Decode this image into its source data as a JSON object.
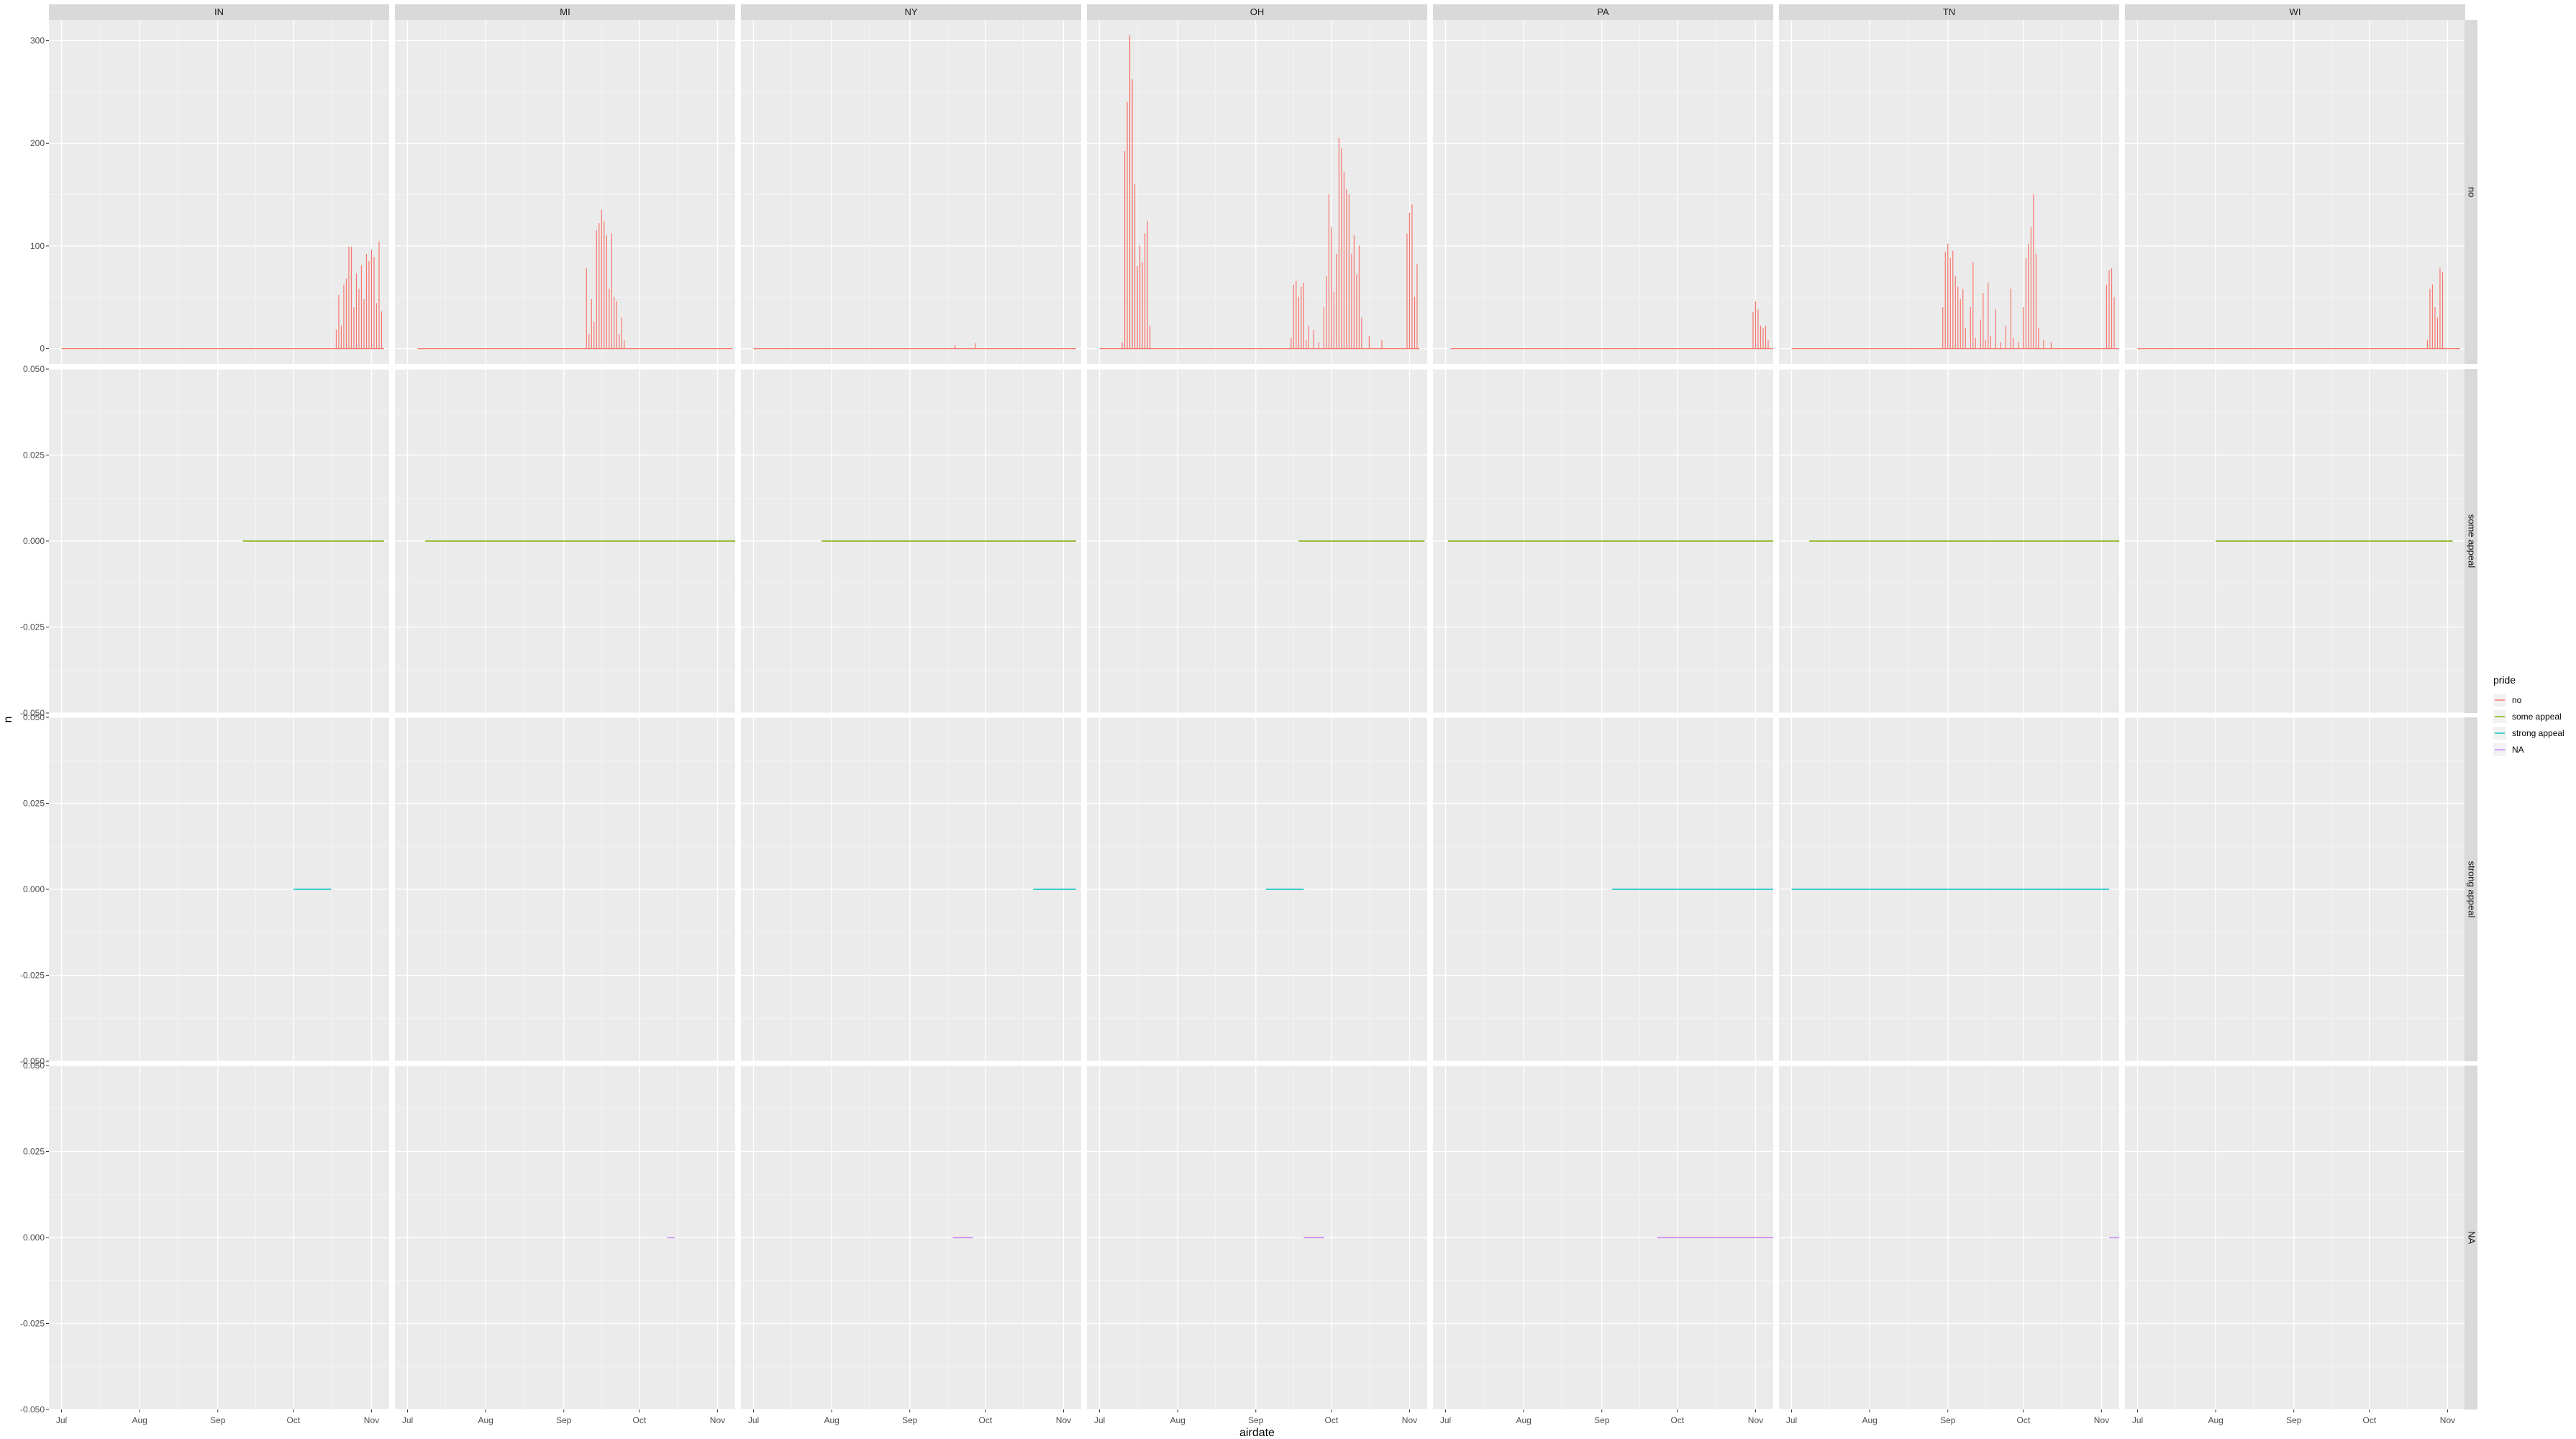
{
  "chart_data": {
    "type": "line",
    "facet_columns": [
      "IN",
      "MI",
      "NY",
      "OH",
      "PA",
      "TN",
      "WI"
    ],
    "facet_rows": [
      "no",
      "some appeal",
      "strong appeal",
      "NA"
    ],
    "xlabel": "airdate",
    "ylabel": "n",
    "x_ticks": [
      "Jul",
      "Aug",
      "Sep",
      "Oct",
      "Nov"
    ],
    "x_range": [
      "2016-06-26",
      "2016-11-08"
    ],
    "y_axes": [
      {
        "row": "no",
        "ylim": [
          -15,
          320
        ],
        "ticks": [
          "0",
          "100",
          "200",
          "300"
        ],
        "tick_values": [
          0,
          100,
          200,
          300
        ]
      },
      {
        "row": "some appeal",
        "ylim": [
          -0.05,
          0.05
        ],
        "ticks": [
          "-0.050",
          "-0.025",
          "0.000",
          "0.025",
          "0.050"
        ],
        "tick_values": [
          -0.05,
          -0.025,
          0,
          0.025,
          0.05
        ]
      },
      {
        "row": "strong appeal",
        "ylim": [
          -0.05,
          0.05
        ],
        "ticks": [
          "-0.050",
          "-0.025",
          "0.000",
          "0.025",
          "0.050"
        ],
        "tick_values": [
          -0.05,
          -0.025,
          0,
          0.025,
          0.05
        ]
      },
      {
        "row": "NA",
        "ylim": [
          -0.05,
          0.05
        ],
        "ticks": [
          "-0.050",
          "-0.025",
          "0.000",
          "0.025",
          "0.050"
        ],
        "tick_values": [
          -0.05,
          -0.025,
          0,
          0.025,
          0.05
        ]
      }
    ],
    "legend": {
      "title": "pride",
      "position": "right",
      "entries": [
        {
          "label": "no",
          "color": "#F8766D"
        },
        {
          "label": "some appeal",
          "color": "#7CAE00"
        },
        {
          "label": "strong appeal",
          "color": "#00BFC4"
        },
        {
          "label": "NA",
          "color": "#C77CFF"
        }
      ]
    },
    "panels": [
      {
        "row": "no",
        "col": "IN",
        "start": "2016-07-01",
        "end": "2016-11-06",
        "peaks": [
          [
            "2016-10-18",
            18
          ],
          [
            "2016-10-19",
            52
          ],
          [
            "2016-10-20",
            22
          ],
          [
            "2016-10-21",
            62
          ],
          [
            "2016-10-22",
            68
          ],
          [
            "2016-10-23",
            99
          ],
          [
            "2016-10-24",
            99
          ],
          [
            "2016-10-25",
            40
          ],
          [
            "2016-10-26",
            73
          ],
          [
            "2016-10-27",
            58
          ],
          [
            "2016-10-28",
            81
          ],
          [
            "2016-10-29",
            48
          ],
          [
            "2016-10-30",
            92
          ],
          [
            "2016-10-31",
            85
          ],
          [
            "2016-11-01",
            96
          ],
          [
            "2016-11-02",
            89
          ],
          [
            "2016-11-03",
            44
          ],
          [
            "2016-11-04",
            104
          ],
          [
            "2016-11-05",
            36
          ]
        ]
      },
      {
        "row": "no",
        "col": "MI",
        "start": "2016-07-05",
        "end": "2016-11-07",
        "peaks": [
          [
            "2016-09-10",
            78
          ],
          [
            "2016-09-11",
            14
          ],
          [
            "2016-09-12",
            48
          ],
          [
            "2016-09-13",
            26
          ],
          [
            "2016-09-14",
            115
          ],
          [
            "2016-09-15",
            122
          ],
          [
            "2016-09-16",
            135
          ],
          [
            "2016-09-17",
            124
          ],
          [
            "2016-09-18",
            110
          ],
          [
            "2016-09-19",
            58
          ],
          [
            "2016-09-20",
            112
          ],
          [
            "2016-09-21",
            50
          ],
          [
            "2016-09-22",
            46
          ],
          [
            "2016-09-23",
            14
          ],
          [
            "2016-09-24",
            30
          ],
          [
            "2016-09-25",
            8
          ]
        ]
      },
      {
        "row": "no",
        "col": "NY",
        "start": "2016-07-01",
        "end": "2016-11-06",
        "peaks": [
          [
            "2016-09-19",
            3
          ],
          [
            "2016-09-27",
            5
          ]
        ]
      },
      {
        "row": "no",
        "col": "OH",
        "start": "2016-07-01",
        "end": "2016-11-05",
        "peaks": [
          [
            "2016-07-10",
            6
          ],
          [
            "2016-07-11",
            192
          ],
          [
            "2016-07-12",
            240
          ],
          [
            "2016-07-13",
            305
          ],
          [
            "2016-07-14",
            262
          ],
          [
            "2016-07-15",
            160
          ],
          [
            "2016-07-16",
            80
          ],
          [
            "2016-07-17",
            100
          ],
          [
            "2016-07-18",
            84
          ],
          [
            "2016-07-19",
            112
          ],
          [
            "2016-07-20",
            124
          ],
          [
            "2016-07-21",
            22
          ],
          [
            "2016-09-15",
            10
          ],
          [
            "2016-09-16",
            62
          ],
          [
            "2016-09-17",
            66
          ],
          [
            "2016-09-18",
            50
          ],
          [
            "2016-09-19",
            60
          ],
          [
            "2016-09-20",
            64
          ],
          [
            "2016-09-21",
            8
          ],
          [
            "2016-09-22",
            22
          ],
          [
            "2016-09-24",
            18
          ],
          [
            "2016-09-26",
            6
          ],
          [
            "2016-09-28",
            40
          ],
          [
            "2016-09-29",
            70
          ],
          [
            "2016-09-30",
            150
          ],
          [
            "2016-10-01",
            118
          ],
          [
            "2016-10-02",
            55
          ],
          [
            "2016-10-03",
            92
          ],
          [
            "2016-10-04",
            205
          ],
          [
            "2016-10-05",
            195
          ],
          [
            "2016-10-06",
            172
          ],
          [
            "2016-10-07",
            155
          ],
          [
            "2016-10-08",
            150
          ],
          [
            "2016-10-09",
            92
          ],
          [
            "2016-10-10",
            110
          ],
          [
            "2016-10-11",
            72
          ],
          [
            "2016-10-12",
            100
          ],
          [
            "2016-10-13",
            30
          ],
          [
            "2016-10-16",
            12
          ],
          [
            "2016-10-21",
            8
          ],
          [
            "2016-10-31",
            112
          ],
          [
            "2016-11-01",
            132
          ],
          [
            "2016-11-02",
            140
          ],
          [
            "2016-11-03",
            50
          ],
          [
            "2016-11-04",
            82
          ]
        ]
      },
      {
        "row": "no",
        "col": "PA",
        "start": "2016-07-03",
        "end": "2016-11-08",
        "peaks": [
          [
            "2016-10-31",
            35
          ],
          [
            "2016-11-01",
            46
          ],
          [
            "2016-11-02",
            38
          ],
          [
            "2016-11-03",
            22
          ],
          [
            "2016-11-04",
            20
          ],
          [
            "2016-11-05",
            22
          ],
          [
            "2016-11-06",
            8
          ]
        ]
      },
      {
        "row": "no",
        "col": "TN",
        "start": "2016-07-01",
        "end": "2016-11-08",
        "peaks": [
          [
            "2016-08-30",
            40
          ],
          [
            "2016-08-31",
            94
          ],
          [
            "2016-09-01",
            102
          ],
          [
            "2016-09-02",
            88
          ],
          [
            "2016-09-03",
            95
          ],
          [
            "2016-09-04",
            70
          ],
          [
            "2016-09-05",
            60
          ],
          [
            "2016-09-06",
            48
          ],
          [
            "2016-09-07",
            58
          ],
          [
            "2016-09-08",
            20
          ],
          [
            "2016-09-10",
            40
          ],
          [
            "2016-09-11",
            84
          ],
          [
            "2016-09-12",
            10
          ],
          [
            "2016-09-14",
            28
          ],
          [
            "2016-09-15",
            54
          ],
          [
            "2016-09-16",
            8
          ],
          [
            "2016-09-17",
            64
          ],
          [
            "2016-09-18",
            12
          ],
          [
            "2016-09-20",
            38
          ],
          [
            "2016-09-22",
            6
          ],
          [
            "2016-09-24",
            22
          ],
          [
            "2016-09-26",
            58
          ],
          [
            "2016-09-27",
            10
          ],
          [
            "2016-09-29",
            6
          ],
          [
            "2016-10-01",
            40
          ],
          [
            "2016-10-02",
            88
          ],
          [
            "2016-10-03",
            102
          ],
          [
            "2016-10-04",
            118
          ],
          [
            "2016-10-05",
            150
          ],
          [
            "2016-10-06",
            92
          ],
          [
            "2016-10-07",
            20
          ],
          [
            "2016-10-09",
            8
          ],
          [
            "2016-10-12",
            6
          ],
          [
            "2016-11-03",
            62
          ],
          [
            "2016-11-04",
            76
          ],
          [
            "2016-11-05",
            78
          ],
          [
            "2016-11-06",
            50
          ]
        ]
      },
      {
        "row": "no",
        "col": "WI",
        "start": "2016-07-01",
        "end": "2016-11-06",
        "peaks": [
          [
            "2016-10-24",
            8
          ],
          [
            "2016-10-25",
            58
          ],
          [
            "2016-10-26",
            62
          ],
          [
            "2016-10-27",
            40
          ],
          [
            "2016-10-28",
            30
          ],
          [
            "2016-10-29",
            78
          ],
          [
            "2016-10-30",
            74
          ]
        ]
      },
      {
        "row": "some appeal",
        "col": "IN",
        "start": "2016-09-11",
        "end": "2016-11-06",
        "value": 0
      },
      {
        "row": "some appeal",
        "col": "MI",
        "start": "2016-07-08",
        "end": "2016-11-08",
        "value": 0
      },
      {
        "row": "some appeal",
        "col": "NY",
        "start": "2016-07-28",
        "end": "2016-11-06",
        "value": 0
      },
      {
        "row": "some appeal",
        "col": "OH",
        "start": "2016-09-18",
        "end": "2016-11-07",
        "value": 0
      },
      {
        "row": "some appeal",
        "col": "PA",
        "start": "2016-07-02",
        "end": "2016-11-08",
        "value": 0
      },
      {
        "row": "some appeal",
        "col": "TN",
        "start": "2016-07-08",
        "end": "2016-11-08",
        "value": 0
      },
      {
        "row": "some appeal",
        "col": "WI",
        "start": "2016-08-01",
        "end": "2016-11-03",
        "value": 0
      },
      {
        "row": "strong appeal",
        "col": "IN",
        "start": "2016-10-01",
        "end": "2016-10-16",
        "value": 0
      },
      {
        "row": "strong appeal",
        "col": "NY",
        "start": "2016-10-20",
        "end": "2016-11-06",
        "value": 0
      },
      {
        "row": "strong appeal",
        "col": "OH",
        "start": "2016-09-05",
        "end": "2016-09-20",
        "value": 0
      },
      {
        "row": "strong appeal",
        "col": "PA",
        "start": "2016-09-05",
        "end": "2016-11-08",
        "value": 0
      },
      {
        "row": "strong appeal",
        "col": "TN",
        "start": "2016-07-01",
        "end": "2016-11-04",
        "value": 0
      },
      {
        "row": "NA",
        "col": "MI",
        "start": "2016-10-12",
        "end": "2016-10-15",
        "value": 0
      },
      {
        "row": "NA",
        "col": "NY",
        "start": "2016-09-18",
        "end": "2016-09-26",
        "value": 0
      },
      {
        "row": "NA",
        "col": "OH",
        "start": "2016-09-20",
        "end": "2016-09-28",
        "value": 0
      },
      {
        "row": "NA",
        "col": "PA",
        "start": "2016-09-23",
        "end": "2016-11-08",
        "value": 0
      },
      {
        "row": "NA",
        "col": "TN",
        "start": "2016-11-04",
        "end": "2016-11-08",
        "value": 0
      }
    ],
    "grid": true
  }
}
